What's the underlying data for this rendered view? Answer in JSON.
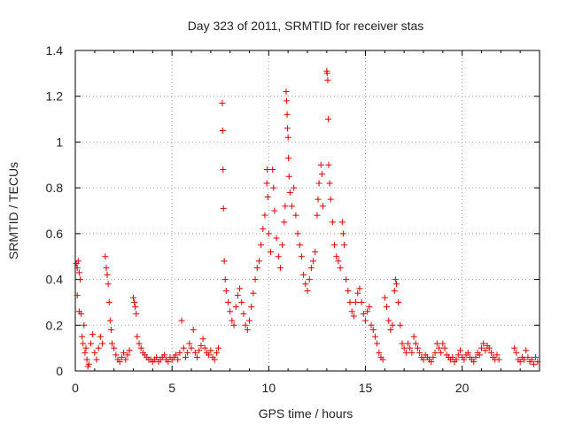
{
  "chart_data": {
    "type": "scatter",
    "title": "Day 323 of 2011, SRMTID for receiver stas",
    "xlabel": "GPS time / hours",
    "ylabel": "SRMTID / TECUs",
    "xlim": [
      0,
      24
    ],
    "ylim": [
      0,
      1.4
    ],
    "xticks": [
      0,
      5,
      10,
      15,
      20
    ],
    "xtick_labels": [
      "0",
      "5",
      "10",
      "15",
      "20"
    ],
    "yticks": [
      0,
      0.2,
      0.4,
      0.6,
      0.8,
      1,
      1.2,
      1.4
    ],
    "ytick_labels": [
      "0",
      "0.2",
      "0.4",
      "0.6",
      "0.8",
      "1",
      "1.2",
      "1.4"
    ],
    "grid": true,
    "marker": "+",
    "color": "#e00000",
    "series": [
      {
        "name": "SRMTID",
        "points": [
          [
            0.05,
            0.47
          ],
          [
            0.1,
            0.45
          ],
          [
            0.15,
            0.48
          ],
          [
            0.2,
            0.43
          ],
          [
            0.1,
            0.33
          ],
          [
            0.2,
            0.26
          ],
          [
            0.3,
            0.25
          ],
          [
            0.35,
            0.15
          ],
          [
            0.4,
            0.12
          ],
          [
            0.5,
            0.08
          ],
          [
            0.6,
            0.05
          ],
          [
            0.7,
            0.03
          ],
          [
            0.25,
            0.4
          ],
          [
            0.45,
            0.2
          ],
          [
            0.55,
            0.1
          ],
          [
            0.65,
            0.02
          ],
          [
            0.8,
            0.12
          ],
          [
            0.9,
            0.16
          ],
          [
            1.0,
            0.08
          ],
          [
            1.1,
            0.05
          ],
          [
            1.2,
            0.1
          ],
          [
            1.3,
            0.15
          ],
          [
            1.4,
            0.12
          ],
          [
            1.55,
            0.5
          ],
          [
            1.6,
            0.45
          ],
          [
            1.65,
            0.42
          ],
          [
            1.7,
            0.38
          ],
          [
            1.75,
            0.3
          ],
          [
            1.8,
            0.22
          ],
          [
            1.85,
            0.18
          ],
          [
            1.9,
            0.12
          ],
          [
            2.0,
            0.1
          ],
          [
            2.1,
            0.07
          ],
          [
            2.2,
            0.05
          ],
          [
            2.3,
            0.04
          ],
          [
            2.4,
            0.06
          ],
          [
            2.5,
            0.08
          ],
          [
            2.6,
            0.05
          ],
          [
            2.7,
            0.07
          ],
          [
            2.8,
            0.09
          ],
          [
            3.0,
            0.32
          ],
          [
            3.05,
            0.3
          ],
          [
            3.1,
            0.28
          ],
          [
            3.15,
            0.25
          ],
          [
            3.2,
            0.15
          ],
          [
            3.3,
            0.12
          ],
          [
            3.4,
            0.1
          ],
          [
            3.5,
            0.08
          ],
          [
            3.6,
            0.07
          ],
          [
            3.7,
            0.06
          ],
          [
            3.8,
            0.05
          ],
          [
            3.9,
            0.05
          ],
          [
            4.0,
            0.04
          ],
          [
            4.1,
            0.05
          ],
          [
            4.2,
            0.06
          ],
          [
            4.3,
            0.04
          ],
          [
            4.4,
            0.05
          ],
          [
            4.5,
            0.06
          ],
          [
            4.6,
            0.07
          ],
          [
            4.7,
            0.05
          ],
          [
            4.8,
            0.04
          ],
          [
            4.9,
            0.06
          ],
          [
            5.0,
            0.05
          ],
          [
            5.1,
            0.06
          ],
          [
            5.2,
            0.07
          ],
          [
            5.3,
            0.05
          ],
          [
            5.4,
            0.08
          ],
          [
            5.5,
            0.22
          ],
          [
            5.6,
            0.1
          ],
          [
            5.7,
            0.06
          ],
          [
            5.8,
            0.08
          ],
          [
            5.9,
            0.12
          ],
          [
            6.0,
            0.1
          ],
          [
            6.1,
            0.18
          ],
          [
            6.2,
            0.08
          ],
          [
            6.3,
            0.06
          ],
          [
            6.4,
            0.09
          ],
          [
            6.5,
            0.11
          ],
          [
            6.6,
            0.14
          ],
          [
            6.7,
            0.1
          ],
          [
            6.8,
            0.08
          ],
          [
            6.9,
            0.07
          ],
          [
            7.0,
            0.09
          ],
          [
            7.1,
            0.06
          ],
          [
            7.2,
            0.05
          ],
          [
            7.3,
            0.08
          ],
          [
            7.4,
            0.1
          ],
          [
            7.6,
            1.17
          ],
          [
            7.62,
            1.05
          ],
          [
            7.64,
            0.88
          ],
          [
            7.66,
            0.71
          ],
          [
            7.7,
            0.48
          ],
          [
            7.75,
            0.4
          ],
          [
            7.8,
            0.35
          ],
          [
            7.9,
            0.3
          ],
          [
            8.0,
            0.26
          ],
          [
            8.1,
            0.22
          ],
          [
            8.2,
            0.2
          ],
          [
            8.3,
            0.28
          ],
          [
            8.4,
            0.33
          ],
          [
            8.5,
            0.36
          ],
          [
            8.6,
            0.3
          ],
          [
            8.7,
            0.25
          ],
          [
            8.8,
            0.2
          ],
          [
            8.9,
            0.18
          ],
          [
            9.0,
            0.22
          ],
          [
            9.1,
            0.28
          ],
          [
            9.2,
            0.34
          ],
          [
            9.3,
            0.4
          ],
          [
            9.4,
            0.45
          ],
          [
            9.5,
            0.48
          ],
          [
            9.6,
            0.55
          ],
          [
            9.7,
            0.62
          ],
          [
            9.8,
            0.68
          ],
          [
            9.9,
            0.82
          ],
          [
            9.92,
            0.88
          ],
          [
            9.95,
            0.76
          ],
          [
            10.0,
            0.6
          ],
          [
            10.1,
            0.52
          ],
          [
            10.2,
            0.88
          ],
          [
            10.25,
            0.8
          ],
          [
            10.3,
            0.7
          ],
          [
            10.4,
            0.58
          ],
          [
            10.5,
            0.5
          ],
          [
            10.6,
            0.45
          ],
          [
            10.7,
            0.55
          ],
          [
            10.8,
            0.65
          ],
          [
            10.85,
            0.72
          ],
          [
            10.9,
            1.22
          ],
          [
            10.92,
            1.18
          ],
          [
            10.95,
            1.12
          ],
          [
            10.97,
            1.06
          ],
          [
            11.0,
            1.02
          ],
          [
            11.02,
            0.93
          ],
          [
            11.05,
            0.85
          ],
          [
            11.1,
            0.78
          ],
          [
            11.2,
            0.72
          ],
          [
            11.3,
            0.8
          ],
          [
            11.4,
            0.68
          ],
          [
            11.5,
            0.6
          ],
          [
            11.6,
            0.55
          ],
          [
            11.7,
            0.5
          ],
          [
            11.8,
            0.42
          ],
          [
            11.9,
            0.38
          ],
          [
            12.0,
            0.35
          ],
          [
            12.1,
            0.4
          ],
          [
            12.2,
            0.45
          ],
          [
            12.3,
            0.48
          ],
          [
            12.4,
            0.52
          ],
          [
            12.5,
            0.68
          ],
          [
            12.55,
            0.75
          ],
          [
            12.6,
            0.82
          ],
          [
            12.7,
            0.9
          ],
          [
            12.75,
            0.86
          ],
          [
            12.8,
            0.72
          ],
          [
            13.0,
            1.31
          ],
          [
            13.02,
            1.3
          ],
          [
            13.05,
            1.27
          ],
          [
            13.08,
            1.1
          ],
          [
            13.1,
            0.9
          ],
          [
            13.15,
            0.82
          ],
          [
            13.2,
            0.75
          ],
          [
            13.3,
            0.65
          ],
          [
            13.4,
            0.55
          ],
          [
            13.5,
            0.5
          ],
          [
            13.6,
            0.48
          ],
          [
            13.7,
            0.45
          ],
          [
            13.8,
            0.65
          ],
          [
            13.85,
            0.6
          ],
          [
            13.9,
            0.55
          ],
          [
            14.0,
            0.4
          ],
          [
            14.1,
            0.35
          ],
          [
            14.2,
            0.3
          ],
          [
            14.3,
            0.26
          ],
          [
            14.4,
            0.24
          ],
          [
            14.5,
            0.3
          ],
          [
            14.6,
            0.34
          ],
          [
            14.7,
            0.36
          ],
          [
            14.8,
            0.3
          ],
          [
            14.9,
            0.25
          ],
          [
            15.0,
            0.22
          ],
          [
            15.1,
            0.26
          ],
          [
            15.2,
            0.28
          ],
          [
            15.3,
            0.2
          ],
          [
            15.4,
            0.18
          ],
          [
            15.5,
            0.15
          ],
          [
            15.6,
            0.12
          ],
          [
            15.7,
            0.08
          ],
          [
            15.8,
            0.06
          ],
          [
            15.9,
            0.05
          ],
          [
            16.0,
            0.32
          ],
          [
            16.1,
            0.28
          ],
          [
            16.2,
            0.22
          ],
          [
            16.3,
            0.18
          ],
          [
            16.4,
            0.2
          ],
          [
            16.5,
            0.35
          ],
          [
            16.55,
            0.4
          ],
          [
            16.6,
            0.38
          ],
          [
            16.7,
            0.3
          ],
          [
            16.8,
            0.2
          ],
          [
            16.9,
            0.12
          ],
          [
            17.0,
            0.1
          ],
          [
            17.1,
            0.08
          ],
          [
            17.2,
            0.12
          ],
          [
            17.3,
            0.1
          ],
          [
            17.4,
            0.08
          ],
          [
            17.5,
            0.15
          ],
          [
            17.6,
            0.12
          ],
          [
            17.7,
            0.1
          ],
          [
            17.8,
            0.08
          ],
          [
            17.9,
            0.06
          ],
          [
            18.0,
            0.05
          ],
          [
            18.1,
            0.07
          ],
          [
            18.2,
            0.06
          ],
          [
            18.3,
            0.05
          ],
          [
            18.4,
            0.04
          ],
          [
            18.5,
            0.06
          ],
          [
            18.6,
            0.08
          ],
          [
            18.7,
            0.12
          ],
          [
            18.8,
            0.1
          ],
          [
            18.9,
            0.08
          ],
          [
            19.0,
            0.12
          ],
          [
            19.1,
            0.1
          ],
          [
            19.2,
            0.07
          ],
          [
            19.3,
            0.06
          ],
          [
            19.4,
            0.05
          ],
          [
            19.5,
            0.06
          ],
          [
            19.6,
            0.04
          ],
          [
            19.7,
            0.05
          ],
          [
            19.8,
            0.07
          ],
          [
            19.9,
            0.09
          ],
          [
            20.0,
            0.06
          ],
          [
            20.1,
            0.05
          ],
          [
            20.2,
            0.07
          ],
          [
            20.3,
            0.08
          ],
          [
            20.4,
            0.06
          ],
          [
            20.5,
            0.05
          ],
          [
            20.6,
            0.04
          ],
          [
            20.7,
            0.06
          ],
          [
            20.8,
            0.08
          ],
          [
            20.9,
            0.07
          ],
          [
            21.0,
            0.1
          ],
          [
            21.1,
            0.12
          ],
          [
            21.2,
            0.09
          ],
          [
            21.3,
            0.11
          ],
          [
            21.4,
            0.1
          ],
          [
            21.5,
            0.08
          ],
          [
            21.6,
            0.06
          ],
          [
            21.7,
            0.05
          ],
          [
            21.8,
            0.07
          ],
          [
            21.9,
            0.05
          ],
          [
            22.7,
            0.1
          ],
          [
            22.8,
            0.08
          ],
          [
            22.9,
            0.05
          ],
          [
            23.0,
            0.04
          ],
          [
            23.1,
            0.06
          ],
          [
            23.2,
            0.05
          ],
          [
            23.3,
            0.09
          ],
          [
            23.4,
            0.06
          ],
          [
            23.5,
            0.04
          ],
          [
            23.6,
            0.05
          ],
          [
            23.7,
            0.03
          ],
          [
            23.8,
            0.06
          ],
          [
            23.9,
            0.04
          ]
        ]
      }
    ]
  }
}
